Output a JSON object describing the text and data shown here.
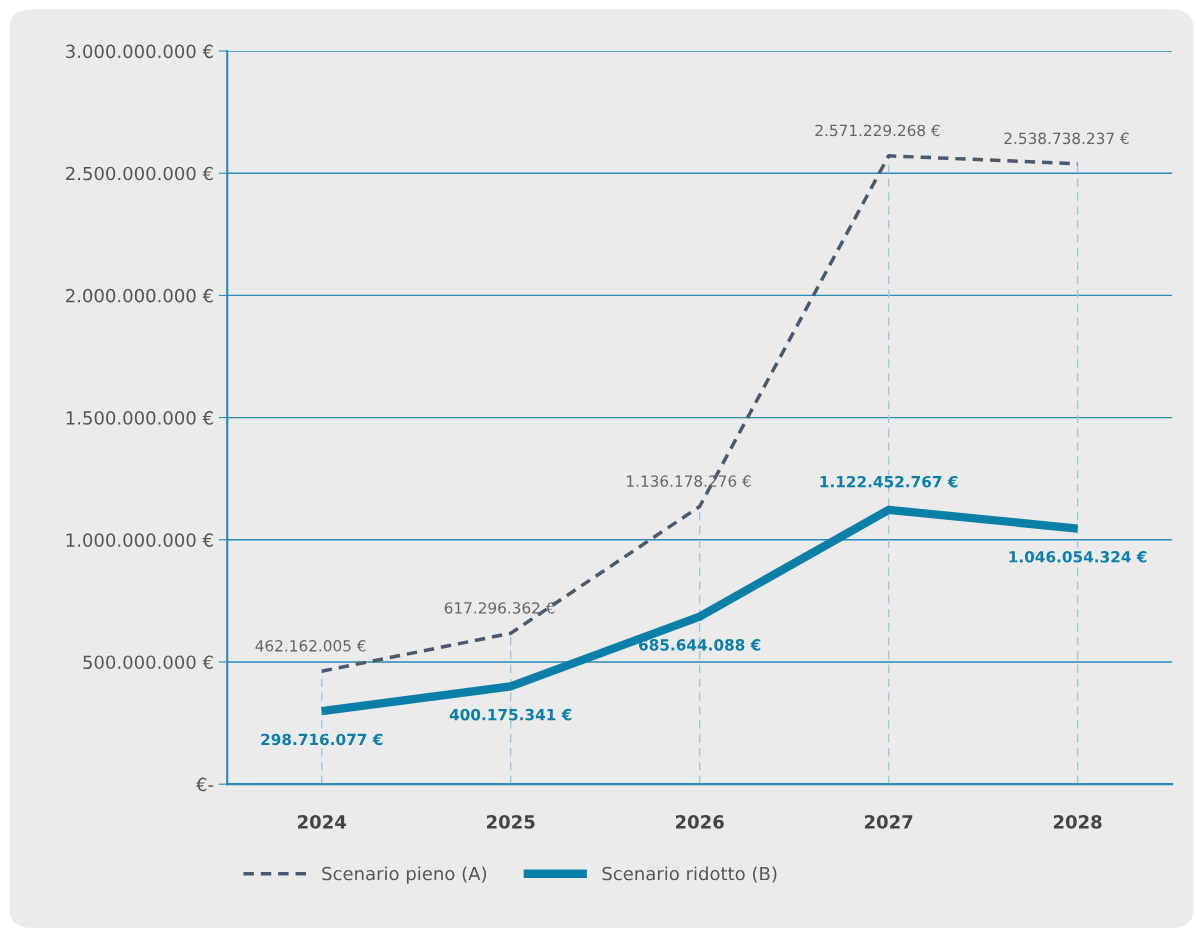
{
  "chart_data": {
    "type": "line",
    "categories": [
      "2024",
      "2025",
      "2026",
      "2027",
      "2028"
    ],
    "series": [
      {
        "name": "Scenario pieno (A)",
        "color": "#4a5a6e",
        "line_style": "dashed",
        "values": [
          462162005,
          617296362,
          1136178276,
          2571229268,
          2538738237
        ],
        "value_labels": [
          "462.162.005 €",
          "617.296.362 €",
          "1.136.178.276 €",
          "2.571.229.268 €",
          "2.538.738.237 €"
        ]
      },
      {
        "name": "Scenario ridotto (B)",
        "color": "#0a7fa8",
        "line_style": "solid",
        "values": [
          298716077,
          400175341,
          685644088,
          1122452767,
          1046054324
        ],
        "value_labels": [
          "298.716.077 €",
          "400.175.341 €",
          "685.644.088 €",
          "1.122.452.767 €",
          "1.046.054.324 €"
        ]
      }
    ],
    "ylim": [
      0,
      3000000000
    ],
    "yticks": [
      {
        "value": 0,
        "label": "€-"
      },
      {
        "value": 500000000,
        "label": "500.000.000 €"
      },
      {
        "value": 1000000000,
        "label": "1.000.000.000 €"
      },
      {
        "value": 1500000000,
        "label": "1.500.000.000 €"
      },
      {
        "value": 2000000000,
        "label": "2.000.000.000 €"
      },
      {
        "value": 2500000000,
        "label": "2.500.000.000 €"
      },
      {
        "value": 3000000000,
        "label": "3.000.000.000 €"
      }
    ],
    "ref_lines": [
      {
        "axis": "x",
        "value": "2024",
        "color": "#9cc8dc",
        "line_style": "dashed"
      },
      {
        "axis": "x",
        "value": "2025",
        "color": "#9cc8dc",
        "line_style": "dashed"
      },
      {
        "axis": "x",
        "value": "2026",
        "color": "#9cc8dc",
        "line_style": "dashed"
      },
      {
        "axis": "x",
        "value": "2027",
        "color": "#9cc8dc",
        "line_style": "dashed"
      },
      {
        "axis": "x",
        "value": "2028",
        "color": "#9cc8dc",
        "line_style": "dashed"
      }
    ],
    "grid": "y",
    "legend": "bottom",
    "marker": "none"
  }
}
